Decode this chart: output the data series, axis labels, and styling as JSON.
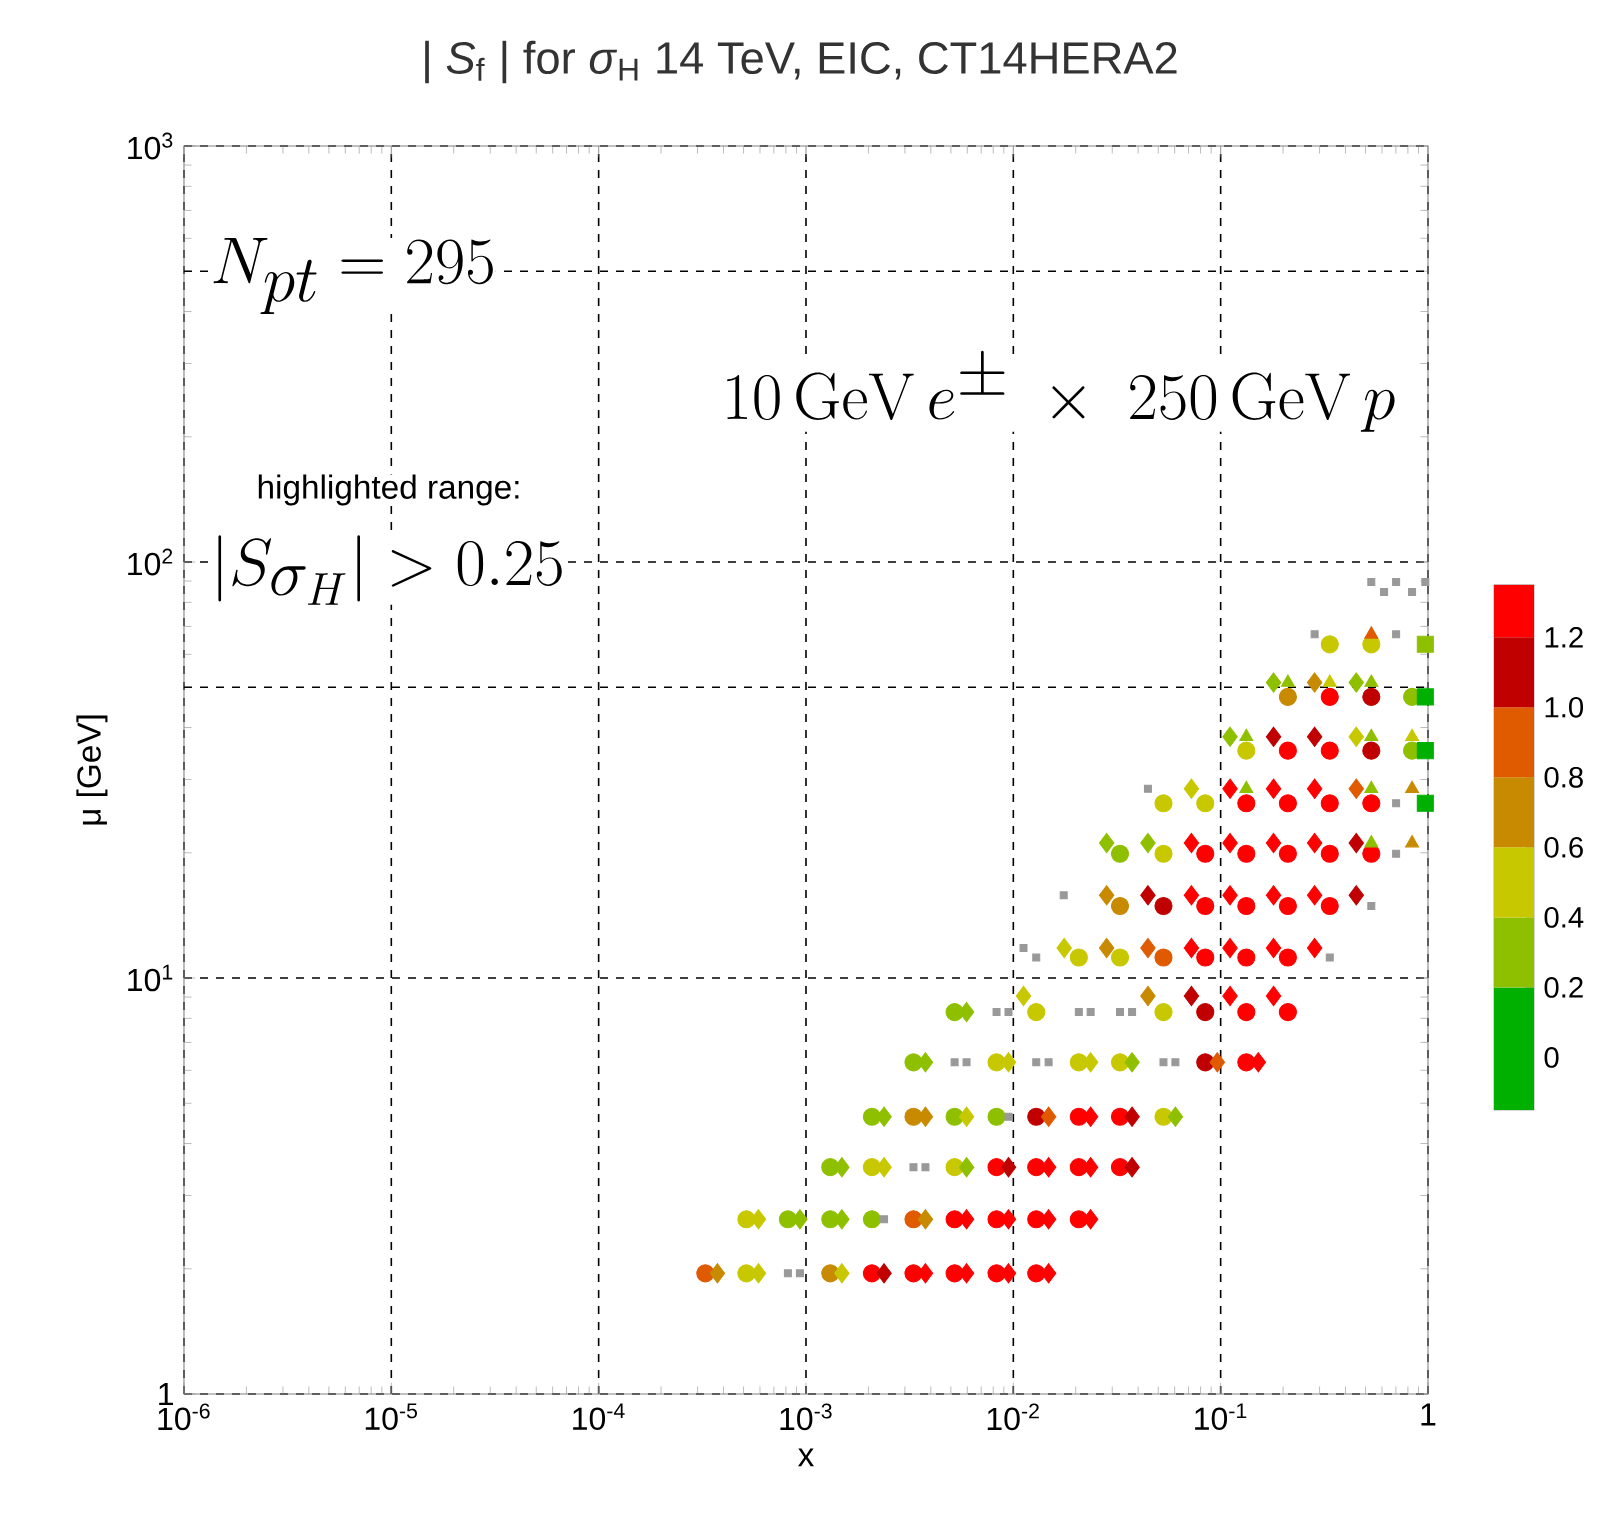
{
  "chart_data": {
    "type": "scatter",
    "title": "| *S*$_{f}$ | for *σ*$_{H}$  14 TeV,  EIC, CT14HERA2",
    "xlabel": "x",
    "ylabel": "μ [GeV]",
    "annotations": [
      "N_{pt} = 295",
      "10\\,\\mathrm{GeV}\\,e^{\\pm}\\;\\times\\;250\\,\\mathrm{GeV}\\,p",
      "highlighted range:",
      "|S_{\\sigma_H}| > 0.25"
    ],
    "log": "xy",
    "grid": true,
    "xlim": [
      1e-06,
      1
    ],
    "ylim": [
      1,
      1000
    ],
    "xticks": [
      {
        "value": 1e-06,
        "label": "10$^{-6}$"
      },
      {
        "value": 1e-05,
        "label": "10$^{-5}$"
      },
      {
        "value": 0.0001,
        "label": "10$^{-4}$"
      },
      {
        "value": 0.001,
        "label": "10$^{-3}$"
      },
      {
        "value": 0.01,
        "label": "10$^{-2}$"
      },
      {
        "value": 0.1,
        "label": "10$^{-1}$"
      },
      1
    ],
    "yticks": [
      1,
      {
        "value": 10,
        "label": "10$^{1}$"
      },
      {
        "value": 100,
        "label": "10$^{2}$"
      },
      {
        "value": 1000,
        "label": "10$^{3}$"
      }
    ],
    "ref_lines": [
      {
        "axis": "y",
        "value": 50,
        "line_style": "dashed"
      },
      {
        "axis": "y",
        "value": 500,
        "line_style": "dashed"
      }
    ],
    "clim": [
      -0.15,
      1.35
    ],
    "cticks": [
      0,
      0.2,
      0.4,
      0.6,
      0.8,
      {
        "value": 1.0,
        "label": "1.0"
      },
      1.2
    ],
    "series": [
      {
        "marker": "circle",
        "x": [
          0.000327,
          0.000516,
          0.00131,
          0.00208,
          0.0033,
          0.00521,
          0.0083,
          0.0129,
          0.000516,
          0.000818,
          0.00131,
          0.00208,
          0.0033,
          0.00521,
          0.0083,
          0.0129,
          0.0207,
          0.00131,
          0.00208,
          0.00521,
          0.0083,
          0.0129,
          0.0207,
          0.0327,
          0.00208,
          0.0033,
          0.00521,
          0.0083,
          0.0129,
          0.0207,
          0.0327,
          0.053,
          0.0033,
          0.0083,
          0.0207,
          0.0327,
          0.0843,
          0.133,
          0.00521,
          0.0129,
          0.053,
          0.0843,
          0.133,
          0.211,
          0.0207,
          0.0327,
          0.053,
          0.0843,
          0.133,
          0.211,
          0.0327,
          0.053,
          0.0843,
          0.133,
          0.211,
          0.336,
          0.0327,
          0.053,
          0.0843,
          0.133,
          0.211,
          0.336,
          0.533,
          0.053,
          0.0843,
          0.133,
          0.211,
          0.336,
          0.533,
          0.133,
          0.211,
          0.336,
          0.533,
          0.838,
          0.211,
          0.336,
          0.533,
          0.838,
          0.336,
          0.533
        ],
        "values": [
          1.95,
          1.95,
          1.95,
          1.95,
          1.95,
          1.95,
          1.95,
          1.95,
          2.63,
          2.63,
          2.63,
          2.63,
          2.63,
          2.63,
          2.63,
          2.63,
          2.63,
          3.51,
          3.51,
          3.51,
          3.51,
          3.51,
          3.51,
          3.51,
          4.64,
          4.64,
          4.64,
          4.64,
          4.64,
          4.64,
          4.64,
          4.64,
          6.27,
          6.27,
          6.27,
          6.27,
          6.27,
          6.27,
          8.28,
          8.28,
          8.28,
          8.28,
          8.28,
          8.28,
          11.2,
          11.2,
          11.2,
          11.2,
          11.2,
          11.2,
          14.9,
          14.9,
          14.9,
          14.9,
          14.9,
          14.9,
          19.9,
          19.9,
          19.9,
          19.9,
          19.9,
          19.9,
          19.9,
          26.3,
          26.3,
          26.3,
          26.3,
          26.3,
          26.3,
          35.2,
          35.2,
          35.2,
          35.2,
          35.2,
          47.4,
          47.4,
          47.4,
          47.4,
          63.4,
          63.4
        ],
        "colors": [
          "#e05a00",
          "#c8c800",
          "#c88a00",
          "#ff0000",
          "#ff0000",
          "#ff0000",
          "#ff0000",
          "#ff0000",
          "#c8c800",
          "#8fc000",
          "#8fc000",
          "#8fc000",
          "#e05a00",
          "#ff0000",
          "#ff0000",
          "#ff0000",
          "#ff0000",
          "#8fc000",
          "#c8c800",
          "#c8c800",
          "#ff0000",
          "#ff0000",
          "#ff0000",
          "#ff0000",
          "#8fc000",
          "#c88a00",
          "#8fc000",
          "#8fc000",
          "#c00000",
          "#ff0000",
          "#ff0000",
          "#c8c800",
          "#8fc000",
          "#c8c800",
          "#c8c800",
          "#c8c800",
          "#c00000",
          "#ff0000",
          "#8fc000",
          "#c8c800",
          "#c8c800",
          "#c00000",
          "#ff0000",
          "#ff0000",
          "#c8c800",
          "#c8c800",
          "#e05a00",
          "#ff0000",
          "#ff0000",
          "#ff0000",
          "#c88a00",
          "#c00000",
          "#ff0000",
          "#ff0000",
          "#ff0000",
          "#ff0000",
          "#8fc000",
          "#c8c800",
          "#ff0000",
          "#ff0000",
          "#ff0000",
          "#ff0000",
          "#ff0000",
          "#c8c800",
          "#c8c800",
          "#ff0000",
          "#ff0000",
          "#ff0000",
          "#ff0000",
          "#c8c800",
          "#ff0000",
          "#ff0000",
          "#c00000",
          "#8fc000",
          "#c88a00",
          "#ff0000",
          "#c00000",
          "#8fc000",
          "#c8c800",
          "#c8c800"
        ]
      },
      {
        "marker": "diamond",
        "x": [
          0.000374,
          0.00059,
          0.00149,
          0.00238,
          0.00377,
          0.00595,
          0.00948,
          0.0148,
          0.00059,
          0.000935,
          0.00149,
          0.00377,
          0.00595,
          0.00948,
          0.0148,
          0.0236,
          0.00149,
          0.00238,
          0.00595,
          0.00948,
          0.0148,
          0.0236,
          0.0374,
          0.00238,
          0.00377,
          0.00595,
          0.0148,
          0.0236,
          0.0374,
          0.0605,
          0.00377,
          0.00948,
          0.0236,
          0.0374,
          0.0964,
          0.152,
          0.00595,
          0.0112,
          0.0446,
          0.0723,
          0.111,
          0.18,
          0.0176,
          0.0282,
          0.0446,
          0.0723,
          0.111,
          0.18,
          0.284,
          0.0282,
          0.0446,
          0.0723,
          0.111,
          0.18,
          0.284,
          0.451,
          0.0282,
          0.0446,
          0.0723,
          0.111,
          0.18,
          0.284,
          0.451,
          0.0723,
          0.111,
          0.18,
          0.284,
          0.451,
          0.111,
          0.18,
          0.284,
          0.451,
          0.18,
          0.284,
          0.451
        ],
        "values": [
          1.95,
          1.95,
          1.95,
          1.95,
          1.95,
          1.95,
          1.95,
          1.95,
          2.63,
          2.63,
          2.63,
          2.63,
          2.63,
          2.63,
          2.63,
          2.63,
          3.51,
          3.51,
          3.51,
          3.51,
          3.51,
          3.51,
          3.51,
          4.64,
          4.64,
          4.64,
          4.64,
          4.64,
          4.64,
          4.64,
          6.27,
          6.27,
          6.27,
          6.27,
          6.27,
          6.27,
          8.28,
          9.05,
          9.05,
          9.05,
          9.05,
          9.05,
          11.8,
          11.8,
          11.8,
          11.8,
          11.8,
          11.8,
          11.8,
          15.8,
          15.8,
          15.8,
          15.8,
          15.8,
          15.8,
          15.8,
          21.1,
          21.1,
          21.1,
          21.1,
          21.1,
          21.1,
          21.1,
          28.5,
          28.5,
          28.5,
          28.5,
          28.5,
          38.0,
          38.0,
          38.0,
          38.0,
          51.3,
          51.3,
          51.3
        ],
        "colors": [
          "#c88a00",
          "#c8c800",
          "#c8c800",
          "#c00000",
          "#ff0000",
          "#ff0000",
          "#ff0000",
          "#ff0000",
          "#c8c800",
          "#8fc000",
          "#8fc000",
          "#c88a00",
          "#ff0000",
          "#ff0000",
          "#ff0000",
          "#ff0000",
          "#8fc000",
          "#c8c800",
          "#8fc000",
          "#c00000",
          "#ff0000",
          "#ff0000",
          "#c00000",
          "#8fc000",
          "#c88a00",
          "#c8c800",
          "#e05a00",
          "#ff0000",
          "#c00000",
          "#8fc000",
          "#8fc000",
          "#c8c800",
          "#c8c800",
          "#8fc000",
          "#e05a00",
          "#ff0000",
          "#8fc000",
          "#c8c800",
          "#c88a00",
          "#c00000",
          "#ff0000",
          "#ff0000",
          "#c8c800",
          "#c88a00",
          "#e05a00",
          "#ff0000",
          "#ff0000",
          "#ff0000",
          "#ff0000",
          "#c88a00",
          "#c00000",
          "#ff0000",
          "#ff0000",
          "#ff0000",
          "#ff0000",
          "#c00000",
          "#8fc000",
          "#8fc000",
          "#ff0000",
          "#ff0000",
          "#ff0000",
          "#ff0000",
          "#c00000",
          "#c8c800",
          "#ff0000",
          "#ff0000",
          "#ff0000",
          "#e05a00",
          "#8fc000",
          "#c00000",
          "#c00000",
          "#c8c800",
          "#8fc000",
          "#c88a00",
          "#8fc000"
        ]
      },
      {
        "marker": "triangle",
        "x": [
          0.533,
          0.838,
          0.133,
          0.533,
          0.838,
          0.133,
          0.533,
          0.838,
          0.211,
          0.336,
          0.533,
          0.533
        ],
        "values": [
          21.1,
          21.1,
          28.5,
          28.5,
          28.5,
          38.0,
          38.0,
          38.0,
          51.3,
          51.3,
          51.3,
          67
        ],
        "colors": [
          "#8fc000",
          "#c88a00",
          "#8fc000",
          "#8fc000",
          "#c88a00",
          "#8fc000",
          "#8fc000",
          "#c8c800",
          "#8fc000",
          "#c8c800",
          "#8fc000",
          "#e05a00"
        ]
      },
      {
        "marker": "square",
        "x": [
          0.971,
          0.971,
          0.971,
          0.971
        ],
        "values": [
          26.3,
          35.2,
          47.4,
          63.4
        ],
        "colors": [
          "#00b000",
          "#00b000",
          "#00b000",
          "#8fc000"
        ]
      },
      {
        "marker": "square",
        "color": "#999999",
        "x": [
          0.000818,
          0.000935,
          0.00238,
          0.0033,
          0.00377,
          0.00948,
          0.00521,
          0.00595,
          0.0129,
          0.0148,
          0.053,
          0.0605,
          0.0083,
          0.00948,
          0.0207,
          0.0236,
          0.0327,
          0.0374,
          0.0112,
          0.0129,
          0.336,
          0.0175,
          0.533,
          0.702,
          0.0446,
          0.702,
          0.284,
          0.702,
          0.533,
          0.614,
          0.702,
          0.838,
          0.971
        ],
        "values": [
          1.95,
          1.95,
          2.63,
          3.51,
          3.51,
          4.64,
          6.27,
          6.27,
          6.27,
          6.27,
          6.27,
          6.27,
          8.28,
          8.28,
          8.28,
          8.28,
          8.28,
          8.28,
          11.8,
          11.2,
          11.2,
          15.8,
          14.9,
          19.9,
          28.5,
          26.3,
          67,
          67,
          89.5,
          84.7,
          89.5,
          84.7,
          89.5
        ]
      }
    ]
  }
}
